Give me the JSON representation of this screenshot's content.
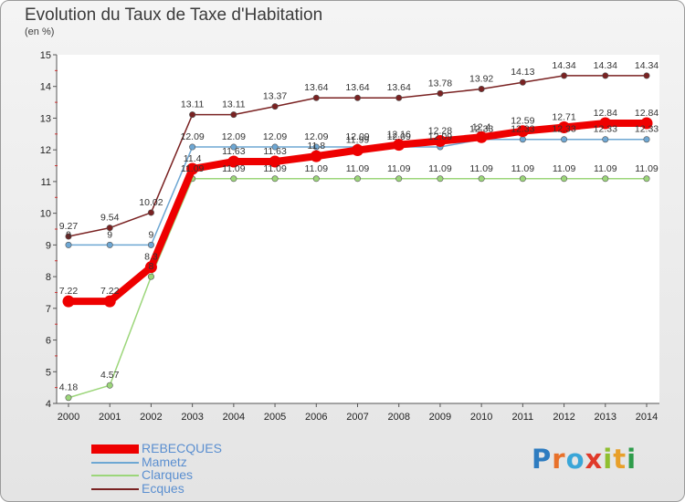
{
  "header": {
    "title": "Evolution du Taux de Taxe d'Habitation",
    "unit": "(en %)"
  },
  "brand": {
    "letters": [
      "P",
      "r",
      "o",
      "x",
      "i",
      "t",
      "i"
    ],
    "colors": [
      "#2e7cc0",
      "#e8712a",
      "#3aa6d8",
      "#e03a2a",
      "#8fbf2f",
      "#e8a02a",
      "#2e9c4a"
    ]
  },
  "chart_data": {
    "type": "line",
    "x": [
      2000,
      2001,
      2002,
      2003,
      2004,
      2005,
      2006,
      2007,
      2008,
      2009,
      2010,
      2011,
      2012,
      2013,
      2014
    ],
    "ylim": [
      4,
      15
    ],
    "yticks": [
      4,
      5,
      6,
      7,
      8,
      9,
      10,
      11,
      12,
      13,
      14,
      15
    ],
    "grid": false,
    "legend_position": "bottom-left",
    "series": [
      {
        "name": "REBECQUES",
        "color": "#ee0000",
        "width": 8,
        "values": [
          7.22,
          7.22,
          8.3,
          11.4,
          11.63,
          11.63,
          11.8,
          11.99,
          12.16,
          12.28,
          12.4,
          12.59,
          12.71,
          12.84,
          12.84
        ],
        "labels": [
          "7.22",
          "7.22",
          "8.3",
          "11.4",
          "11.63",
          "11.63",
          "11.8",
          "11.99",
          "12.16",
          "12.28",
          "12.4",
          "12.59",
          "12.71",
          "12.84",
          "12.84"
        ]
      },
      {
        "name": "Mametz",
        "color": "#6ea7d3",
        "width": 1.5,
        "values": [
          9,
          9,
          9,
          12.09,
          12.09,
          12.09,
          12.09,
          12.09,
          12.09,
          12.09,
          12.33,
          12.33,
          12.33,
          12.33,
          12.33
        ],
        "labels": [
          "9",
          "9",
          "9",
          "12.09",
          "12.09",
          "12.09",
          "12.09",
          "12.09",
          "12.09",
          "12.09",
          "12.33",
          "12.33",
          "12.33",
          "12.33",
          "12.33"
        ]
      },
      {
        "name": "Clarques",
        "color": "#9cd67a",
        "width": 1.5,
        "values": [
          4.18,
          4.57,
          8.0,
          11.09,
          11.09,
          11.09,
          11.09,
          11.09,
          11.09,
          11.09,
          11.09,
          11.09,
          11.09,
          11.09,
          11.09
        ],
        "labels": [
          "4.18",
          "4.57",
          "8",
          "11.09",
          "11.09",
          "11.09",
          "11.09",
          "11.09",
          "11.09",
          "11.09",
          "11.09",
          "11.09",
          "11.09",
          "11.09",
          "11.09"
        ]
      },
      {
        "name": "Ecques",
        "color": "#7a2222",
        "width": 1.5,
        "values": [
          9.27,
          9.54,
          10.02,
          13.11,
          13.11,
          13.37,
          13.64,
          13.64,
          13.64,
          13.78,
          13.92,
          14.13,
          14.34,
          14.34,
          14.34
        ],
        "labels": [
          "9.27",
          "9.54",
          "10.02",
          "13.11",
          "13.11",
          "13.37",
          "13.64",
          "13.64",
          "13.64",
          "13.78",
          "13.92",
          "14.13",
          "14.34",
          "14.34",
          "14.34"
        ]
      }
    ]
  }
}
